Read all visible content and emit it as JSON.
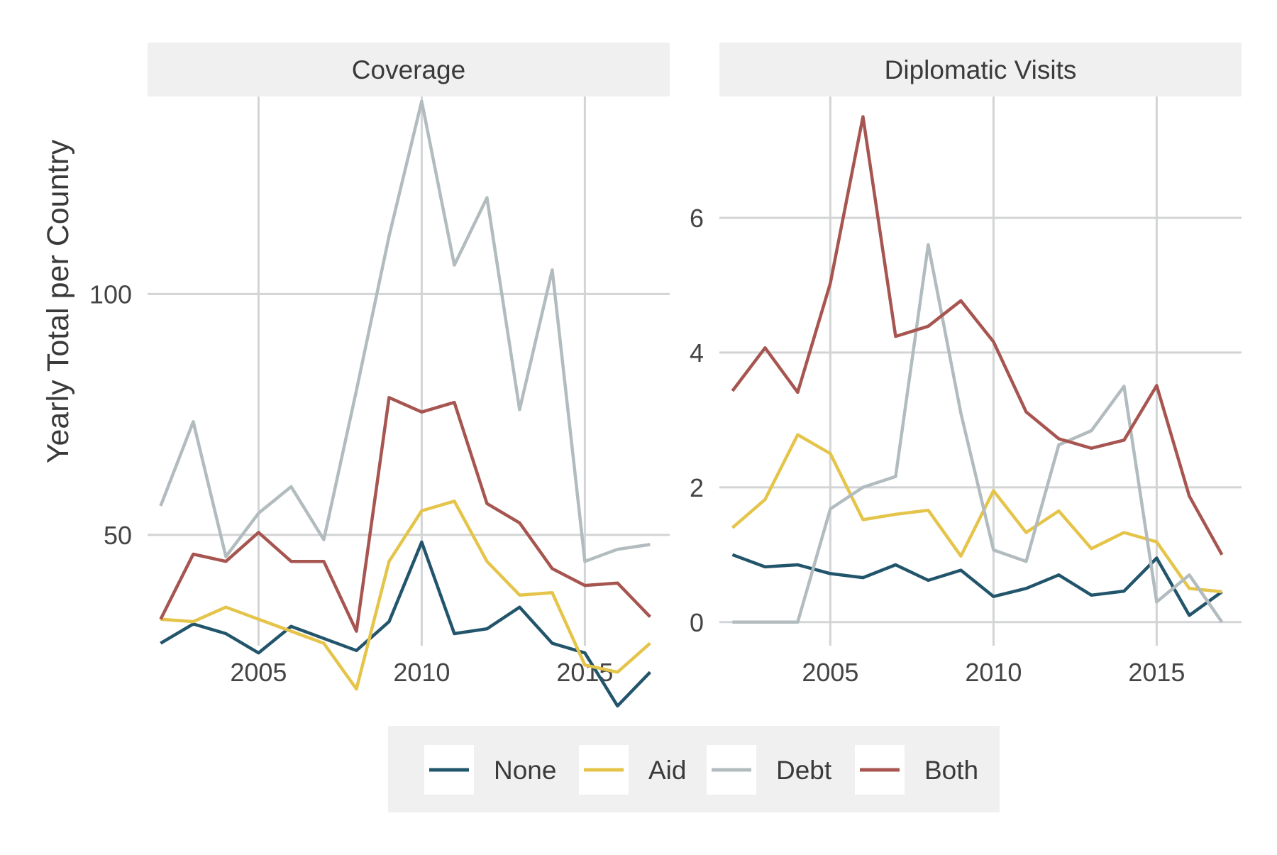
{
  "chart_data": {
    "type": "line",
    "ylabel": "Yearly Total per Country",
    "legend_position": "bottom",
    "grid": true,
    "series_styles": [
      {
        "name": "None",
        "color": "#22556b"
      },
      {
        "name": "Aid",
        "color": "#e5c44a"
      },
      {
        "name": "Debt",
        "color": "#b2bcbf"
      },
      {
        "name": "Both",
        "color": "#a75550"
      }
    ],
    "panels": [
      {
        "title": "Coverage",
        "x": [
          2002,
          2003,
          2004,
          2005,
          2006,
          2007,
          2008,
          2009,
          2010,
          2011,
          2012,
          2013,
          2014,
          2015,
          2016,
          2017
        ],
        "xticks": [
          "2005",
          "2010",
          "2015"
        ],
        "yticks": [
          "50",
          "100"
        ],
        "xlim": [
          2001.6,
          2017.6
        ],
        "ylim": [
          27,
          141
        ],
        "series": [
          {
            "name": "None",
            "values": [
              27.5,
              31.5,
              29.5,
              25.5,
              31.0,
              28.5,
              26.0,
              32.0,
              48.5,
              29.5,
              30.5,
              35.0,
              27.5,
              25.5,
              14.5,
              21.5
            ]
          },
          {
            "name": "Aid",
            "values": [
              32.5,
              32.0,
              35.0,
              32.5,
              30.0,
              27.5,
              18.0,
              44.5,
              55.0,
              57.0,
              44.5,
              37.5,
              38.0,
              23.0,
              21.5,
              27.5
            ]
          },
          {
            "name": "Debt",
            "values": [
              56.0,
              73.5,
              45.5,
              54.5,
              60.0,
              49.0,
              80.0,
              112.0,
              140.0,
              106.0,
              120.0,
              76.0,
              105.0,
              44.5,
              47.0,
              48.0
            ]
          },
          {
            "name": "Both",
            "values": [
              32.5,
              46.0,
              44.5,
              50.5,
              44.5,
              44.5,
              30.0,
              78.5,
              75.5,
              77.5,
              56.5,
              52.5,
              43.0,
              39.5,
              40.0,
              33.0
            ]
          }
        ]
      },
      {
        "title": "Diplomatic Visits",
        "x": [
          2002,
          2003,
          2004,
          2005,
          2006,
          2007,
          2008,
          2009,
          2010,
          2011,
          2012,
          2013,
          2014,
          2015,
          2016,
          2017
        ],
        "xticks": [
          "2005",
          "2010",
          "2015"
        ],
        "yticks": [
          "0",
          "2",
          "4",
          "6"
        ],
        "xlim": [
          2001.6,
          2017.6
        ],
        "ylim": [
          -0.35,
          7.8
        ],
        "series": [
          {
            "name": "None",
            "values": [
              1.0,
              0.82,
              0.85,
              0.72,
              0.66,
              0.85,
              0.62,
              0.77,
              0.38,
              0.5,
              0.7,
              0.4,
              0.46,
              0.95,
              0.1,
              0.45
            ]
          },
          {
            "name": "Aid",
            "values": [
              1.4,
              1.82,
              2.78,
              2.5,
              1.52,
              1.6,
              1.66,
              0.98,
              1.95,
              1.33,
              1.65,
              1.09,
              1.33,
              1.19,
              0.5,
              0.45
            ]
          },
          {
            "name": "Debt",
            "values": [
              0.0,
              0.0,
              0.0,
              1.68,
              2.0,
              2.16,
              5.6,
              3.1,
              1.07,
              0.9,
              2.63,
              2.84,
              3.5,
              0.3,
              0.7,
              0.0
            ]
          },
          {
            "name": "Both",
            "values": [
              3.43,
              4.07,
              3.41,
              5.03,
              7.5,
              4.24,
              4.39,
              4.77,
              4.16,
              3.12,
              2.72,
              2.58,
              2.7,
              3.51,
              1.87,
              1.0
            ]
          }
        ]
      }
    ]
  }
}
